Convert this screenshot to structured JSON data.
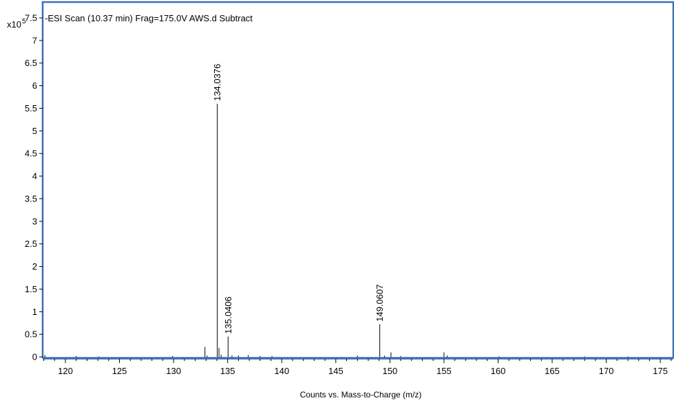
{
  "chart_data": {
    "type": "bar",
    "title": "-ESI Scan (10.37 min) Frag=175.0V AWS.d  Subtract",
    "y_scale_label": "x10",
    "y_scale_exponent": "5",
    "xlabel": "Counts vs. Mass-to-Charge (m/z)",
    "ylabel": "",
    "xlim": [
      117.9,
      176.2
    ],
    "ylim": [
      -0.03,
      7.85
    ],
    "x_ticks": [
      120,
      125,
      130,
      135,
      140,
      145,
      150,
      155,
      160,
      165,
      170,
      175
    ],
    "y_ticks": [
      0,
      0.5,
      1,
      1.5,
      2,
      2.5,
      3,
      3.5,
      4,
      4.5,
      5,
      5.5,
      6,
      6.5,
      7,
      7.5
    ],
    "y_tick_labels": [
      "0",
      "0.5",
      "1",
      "1.5",
      "2",
      "2.5",
      "3",
      "3.5",
      "4",
      "4.5",
      "5",
      "5.5",
      "6",
      "6.5",
      "7",
      "7.5"
    ],
    "grid": false,
    "frame_color": "#3a6fb7",
    "series": [
      {
        "values": [
          {
            "x": 118.1,
            "y": 0.04
          },
          {
            "x": 121.0,
            "y": 0.02
          },
          {
            "x": 123.1,
            "y": 0.01
          },
          {
            "x": 129.9,
            "y": 0.02
          },
          {
            "x": 132.9,
            "y": 0.22
          },
          {
            "x": 133.1,
            "y": 0.03
          },
          {
            "x": 134.0376,
            "y": 5.6,
            "label": "134.0376"
          },
          {
            "x": 134.2,
            "y": 0.2
          },
          {
            "x": 134.4,
            "y": 0.05
          },
          {
            "x": 135.0406,
            "y": 0.45,
            "label": "135.0406"
          },
          {
            "x": 135.4,
            "y": 0.03
          },
          {
            "x": 136.0,
            "y": 0.03
          },
          {
            "x": 136.9,
            "y": 0.04
          },
          {
            "x": 138.0,
            "y": 0.02
          },
          {
            "x": 139.1,
            "y": 0.02
          },
          {
            "x": 147.0,
            "y": 0.03
          },
          {
            "x": 149.0607,
            "y": 0.72,
            "label": "149.0607"
          },
          {
            "x": 149.5,
            "y": 0.03
          },
          {
            "x": 150.1,
            "y": 0.1
          },
          {
            "x": 151.0,
            "y": 0.02
          },
          {
            "x": 155.0,
            "y": 0.1
          },
          {
            "x": 155.3,
            "y": 0.03
          },
          {
            "x": 160.1,
            "y": 0.01
          },
          {
            "x": 168.0,
            "y": 0.01
          },
          {
            "x": 172.0,
            "y": 0.01
          }
        ]
      }
    ]
  }
}
